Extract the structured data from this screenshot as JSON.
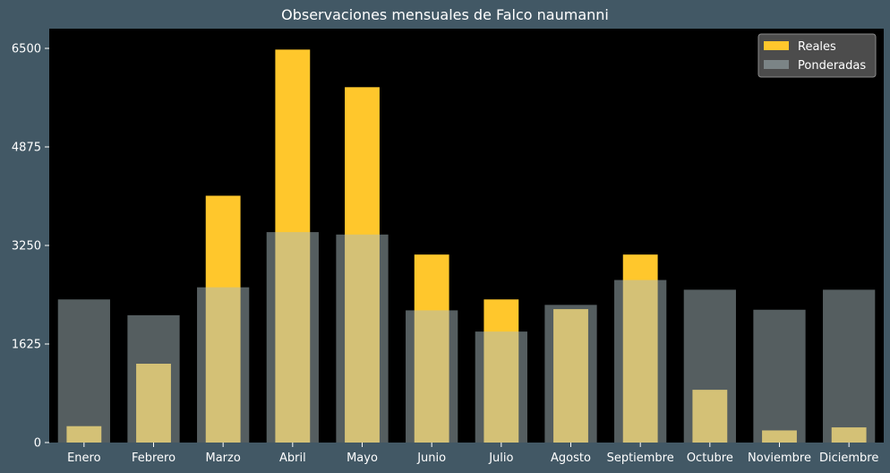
{
  "colors": {
    "figure_background": "#425865",
    "plot_background": "#000000",
    "reales": "#ffc72c",
    "ponderadas": "#a9bcbf",
    "text": "#ffffff",
    "legend_background": "#595959"
  },
  "chart_data": {
    "type": "bar",
    "title": "Observaciones mensuales de Falco naumanni",
    "xlabel": "",
    "ylabel": "",
    "categories": [
      "Enero",
      "Febrero",
      "Marzo",
      "Abril",
      "Mayo",
      "Junio",
      "Julio",
      "Agosto",
      "Septiembre",
      "Octubre",
      "Noviembre",
      "Diciembre"
    ],
    "series": [
      {
        "name": "Reales",
        "values": [
          270,
          1300,
          4070,
          6480,
          5860,
          3100,
          2360,
          2200,
          3100,
          870,
          200,
          250
        ]
      },
      {
        "name": "Ponderadas",
        "values": [
          2360,
          2100,
          2560,
          3470,
          3430,
          2180,
          1830,
          2270,
          2680,
          2520,
          2190,
          2520
        ]
      }
    ],
    "ylim": [
      0,
      6825
    ],
    "yticks": [
      0,
      1625,
      3250,
      4875,
      6500
    ],
    "ytick_labels": [
      "0",
      "1625",
      "3250",
      "4875",
      "6500"
    ],
    "grid": false,
    "legend": "top-right",
    "overlay": "Ponderadas semi-transparente sobre Reales"
  }
}
